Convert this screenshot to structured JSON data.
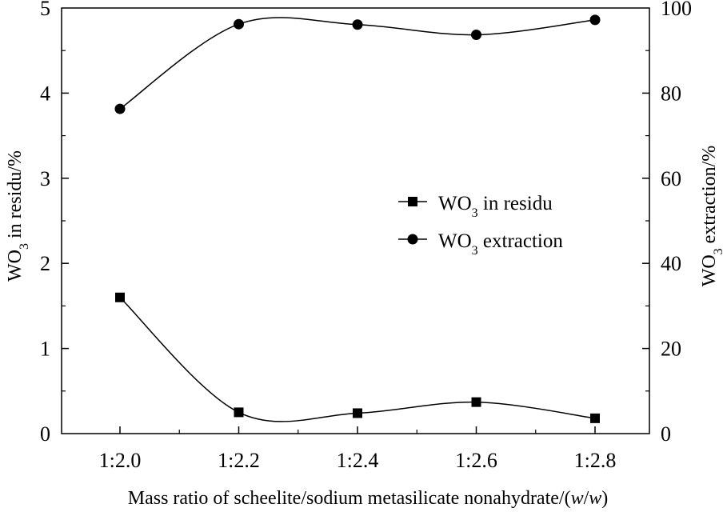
{
  "chart_data": {
    "type": "line",
    "title": "",
    "xlabel": "Mass ratio of scheelite/sodium metasilicate nonahydrate/(w/w)",
    "xlabel_parts": {
      "prefix": "Mass ratio of scheelite/sodium metasilicate nonahydrate/(",
      "w1": "w",
      "slash": "/",
      "w2": "w",
      "suffix": ")"
    },
    "ylabel_left": "WO3 in residu/%",
    "ylabel_left_parts": {
      "a": "WO",
      "sub": "3",
      "b": " in residu/%"
    },
    "ylabel_right": "WO3 extraction/%",
    "ylabel_right_parts": {
      "a": "WO",
      "sub": "3",
      "b": " extraction/%"
    },
    "categories": [
      "1:2.0",
      "1:2.2",
      "1:2.4",
      "1:2.6",
      "1:2.8"
    ],
    "ylim_left": [
      0,
      5
    ],
    "yticks_left": [
      "0",
      "1",
      "2",
      "3",
      "4",
      "5"
    ],
    "ylim_right": [
      0,
      100
    ],
    "yticks_right": [
      "0",
      "20",
      "40",
      "60",
      "80",
      "100"
    ],
    "grid": false,
    "legend_position": "center-right",
    "series": [
      {
        "name": "WO3 in residu",
        "name_parts": {
          "a": "WO",
          "sub": "3",
          "b": " in residu"
        },
        "axis": "left",
        "marker": "square",
        "values": [
          1.6,
          0.25,
          0.24,
          0.37,
          0.18
        ]
      },
      {
        "name": "WO3 extraction",
        "name_parts": {
          "a": "WO",
          "sub": "3",
          "b": " extraction"
        },
        "axis": "right",
        "marker": "circle",
        "values": [
          76.3,
          96.2,
          96.1,
          93.7,
          97.2
        ]
      }
    ],
    "colors": {
      "line": "#000000",
      "marker": "#000000",
      "axis": "#000000"
    }
  }
}
